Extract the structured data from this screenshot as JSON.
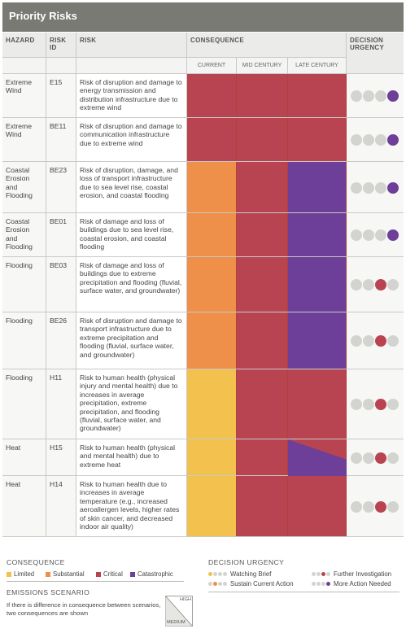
{
  "title": "Priority Risks",
  "headers": {
    "hazard": "HAZARD",
    "risk_id": "RISK ID",
    "risk": "RISK",
    "consequence": "CONSEQUENCE",
    "decision_urgency": "DECISION URGENCY",
    "current": "CURRENT",
    "mid_century": "MID CENTURY",
    "late_century": "LATE CENTURY"
  },
  "colors": {
    "limited": "#f2c14e",
    "substantial": "#ee8f4a",
    "critical": "#b94451",
    "catastrophic": "#6d3f98",
    "dot_grey": "#d3d3cf"
  },
  "rows": [
    {
      "hazard": "Extreme Wind",
      "id": "E15",
      "risk": "Risk of disruption and damage to energy transmission and distribution infrastructure due to extreme wind",
      "current": "critical",
      "mid": "critical",
      "late": "critical",
      "urgency": "more_action"
    },
    {
      "hazard": "Extreme Wind",
      "id": "BE11",
      "risk": "Risk of disruption and damage to communication infrastructure due to extreme wind",
      "current": "critical",
      "mid": "critical",
      "late": "critical",
      "urgency": "more_action"
    },
    {
      "hazard": "Coastal Erosion and Flooding",
      "id": "BE23",
      "risk": "Risk of disruption, damage, and loss of transport infrastructure due to sea level rise, coastal erosion, and coastal flooding",
      "current": "substantial",
      "mid": "critical",
      "late": "catastrophic",
      "urgency": "more_action"
    },
    {
      "hazard": "Coastal Erosion and Flooding",
      "id": "BE01",
      "risk": "Risk of damage and loss of buildings due to sea level rise, coastal erosion, and coastal flooding",
      "current": "substantial",
      "mid": "critical",
      "late": "catastrophic",
      "urgency": "more_action"
    },
    {
      "hazard": "Flooding",
      "id": "BE03",
      "risk": "Risk of damage and loss of buildings due to extreme precipitation and flooding (fluvial, surface water, and groundwater)",
      "current": "substantial",
      "mid": "critical",
      "late": "catastrophic",
      "urgency": "further_investigation"
    },
    {
      "hazard": "Flooding",
      "id": "BE26",
      "risk": "Risk of disruption and damage to transport infrastructure due to extreme precipitation and flooding (fluvial, surface water, and groundwater)",
      "current": "substantial",
      "mid": "critical",
      "late": "catastrophic",
      "urgency": "further_investigation"
    },
    {
      "hazard": "Flooding",
      "id": "H11",
      "risk": "Risk to human health (physical injury and mental health) due to increases in average precipitation, extreme precipitation, and flooding (fluvial, surface water, and groundwater)",
      "current": "limited",
      "mid": "critical",
      "late": "critical",
      "urgency": "further_investigation"
    },
    {
      "hazard": "Heat",
      "id": "H15",
      "risk": "Risk to human health (physical and mental health) due to extreme heat",
      "current": "limited",
      "mid": "critical",
      "late": "critical|catastrophic",
      "urgency": "further_investigation"
    },
    {
      "hazard": "Heat",
      "id": "H14",
      "risk": "Risk to human health due to increases in average temperature (e.g., increased aeroallergen levels, higher rates of skin cancer, and decreased indoor air quality)",
      "current": "limited",
      "mid": "critical",
      "late": "critical",
      "urgency": "further_investigation"
    }
  ],
  "legend": {
    "consequence_title": "CONSEQUENCE",
    "limited": "Limited",
    "substantial": "Substantial",
    "critical": "Critical",
    "catastrophic": "Catastrophic",
    "urgency_title": "DECISION URGENCY",
    "watching_brief": "Watching Brief",
    "further_investigation": "Further Investigation",
    "sustain_current": "Sustain Current Action",
    "more_action": "More Action Needed",
    "emissions_title": "EMISSIONS SCENARIO",
    "emissions_note": "If there is difference in consequence between scenarios, two consequences are shown",
    "high": "HIGH",
    "medium": "MEDIUM"
  }
}
